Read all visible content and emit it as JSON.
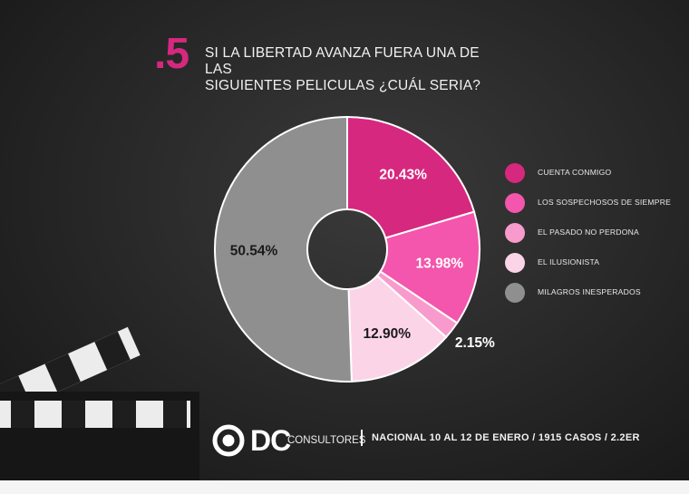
{
  "question": {
    "number": ".5",
    "line1": "SI LA LIBERTAD AVANZA FUERA UNA DE LAS",
    "line2": "SIGUIENTES PELICULAS ¿CUÁL SERIA?"
  },
  "chart_data": {
    "type": "pie",
    "donut": true,
    "categories": [
      "CUENTA CONMIGO",
      "LOS SOSPECHOSOS DE SIEMPRE",
      "EL PASADO NO PERDONA",
      "EL ILUSIONISTA",
      "MILAGROS INESPERADOS"
    ],
    "values": [
      20.43,
      13.98,
      2.15,
      12.9,
      50.54
    ],
    "labels": [
      "20.43%",
      "13.98%",
      "2.15%",
      "12.90%",
      "50.54%"
    ],
    "colors": [
      "#d6287f",
      "#f356ac",
      "#f89bcc",
      "#fcd4e8",
      "#8f8f8f"
    ],
    "legend_position": "right"
  },
  "footer": {
    "brand": "DC",
    "brand_sub": "CONSULTORES",
    "info": "NACIONAL  10 AL 12 DE ENERO / 1915 CASOS / 2.2ER"
  }
}
